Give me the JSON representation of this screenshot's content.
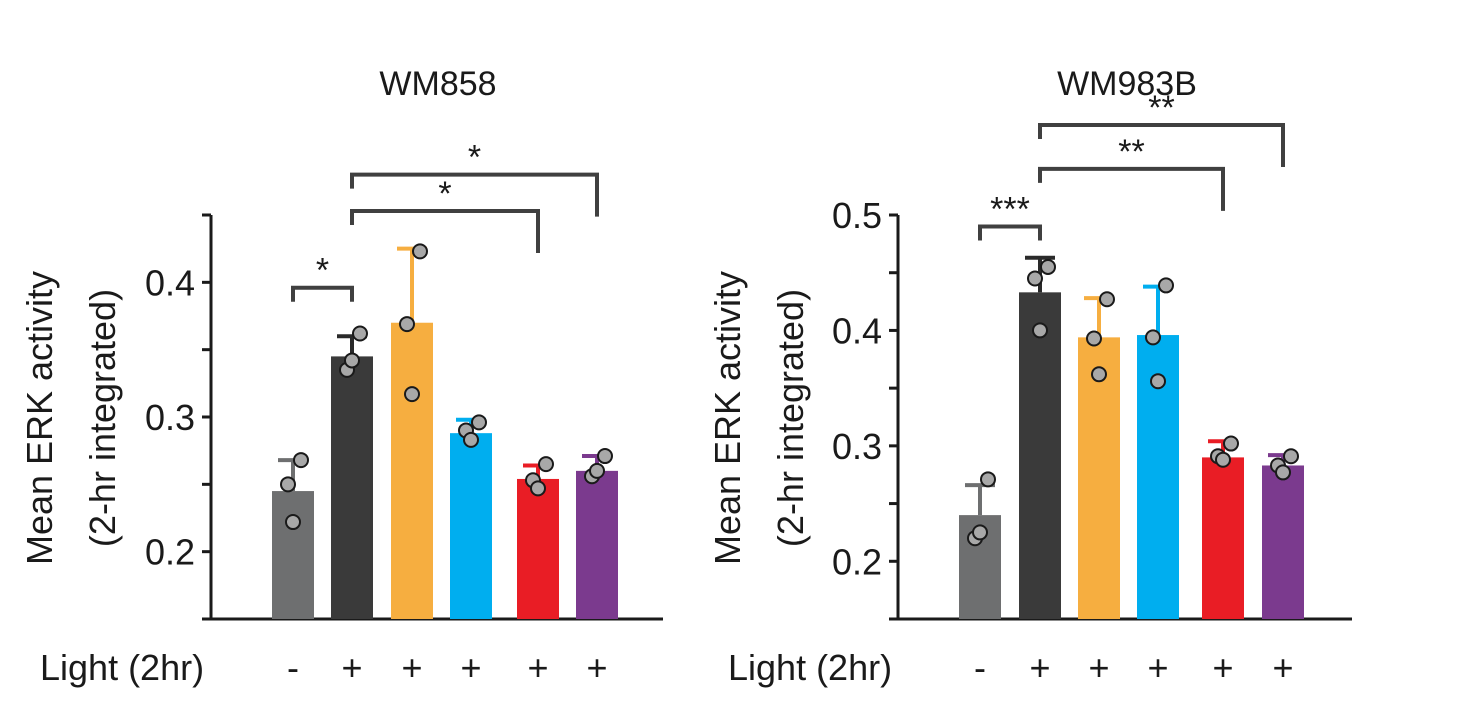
{
  "chart_data": [
    {
      "type": "bar",
      "title": "WM858",
      "ylabel": "Mean ERK activity",
      "ylabel_line2": "(2-hr integrated)",
      "xlabel": "Light (2hr)",
      "categories": [
        "-",
        "+",
        "+",
        "+",
        "+",
        "+"
      ],
      "values": [
        0.245,
        0.345,
        0.37,
        0.288,
        0.254,
        0.26
      ],
      "error_upper": [
        0.268,
        0.36,
        0.425,
        0.298,
        0.264,
        0.271
      ],
      "points": [
        [
          0.268,
          0.25,
          0.222
        ],
        [
          0.362,
          0.335,
          0.342
        ],
        [
          0.423,
          0.369,
          0.317
        ],
        [
          0.296,
          0.29,
          0.283
        ],
        [
          0.265,
          0.253,
          0.247
        ],
        [
          0.271,
          0.256,
          0.26
        ]
      ],
      "colors": [
        "#6e6f70",
        "#3a3a3a",
        "#f6ae40",
        "#00aeef",
        "#e91d25",
        "#7b3a8e"
      ],
      "ylim": [
        0.15,
        0.45
      ],
      "yticks": [
        0.2,
        0.3,
        0.4
      ],
      "ytick_labels": [
        "0.2",
        "0.3",
        "0.4"
      ],
      "significance": [
        {
          "from": 0,
          "to": 1,
          "label": "*",
          "level": 0.396
        },
        {
          "from": 1,
          "to": 4,
          "label": "*",
          "level": 0.453
        },
        {
          "from": 1,
          "to": 5,
          "label": "*",
          "level": 0.48
        }
      ]
    },
    {
      "type": "bar",
      "title": "WM983B",
      "ylabel": "Mean ERK activity",
      "ylabel_line2": "(2-hr integrated)",
      "xlabel": "Light (2hr)",
      "categories": [
        "-",
        "+",
        "+",
        "+",
        "+",
        "+"
      ],
      "values": [
        0.24,
        0.433,
        0.394,
        0.396,
        0.29,
        0.283
      ],
      "error_upper": [
        0.266,
        0.463,
        0.428,
        0.438,
        0.304,
        0.292
      ],
      "points": [
        [
          0.271,
          0.22,
          0.225
        ],
        [
          0.455,
          0.445,
          0.4
        ],
        [
          0.427,
          0.393,
          0.362
        ],
        [
          0.439,
          0.394,
          0.356
        ],
        [
          0.302,
          0.291,
          0.288
        ],
        [
          0.291,
          0.283,
          0.277
        ]
      ],
      "colors": [
        "#6e6f70",
        "#3a3a3a",
        "#f6ae40",
        "#00aeef",
        "#e91d25",
        "#7b3a8e"
      ],
      "ylim": [
        0.15,
        0.5
      ],
      "yticks": [
        0.2,
        0.3,
        0.4,
        0.5
      ],
      "ytick_labels": [
        "0.2",
        "0.3",
        "0.4",
        "0.5"
      ],
      "significance": [
        {
          "from": 0,
          "to": 1,
          "label": "***",
          "level": 0.49
        },
        {
          "from": 1,
          "to": 4,
          "label": "**",
          "level": 0.54
        },
        {
          "from": 1,
          "to": 5,
          "label": "**",
          "level": 0.578
        }
      ]
    }
  ]
}
